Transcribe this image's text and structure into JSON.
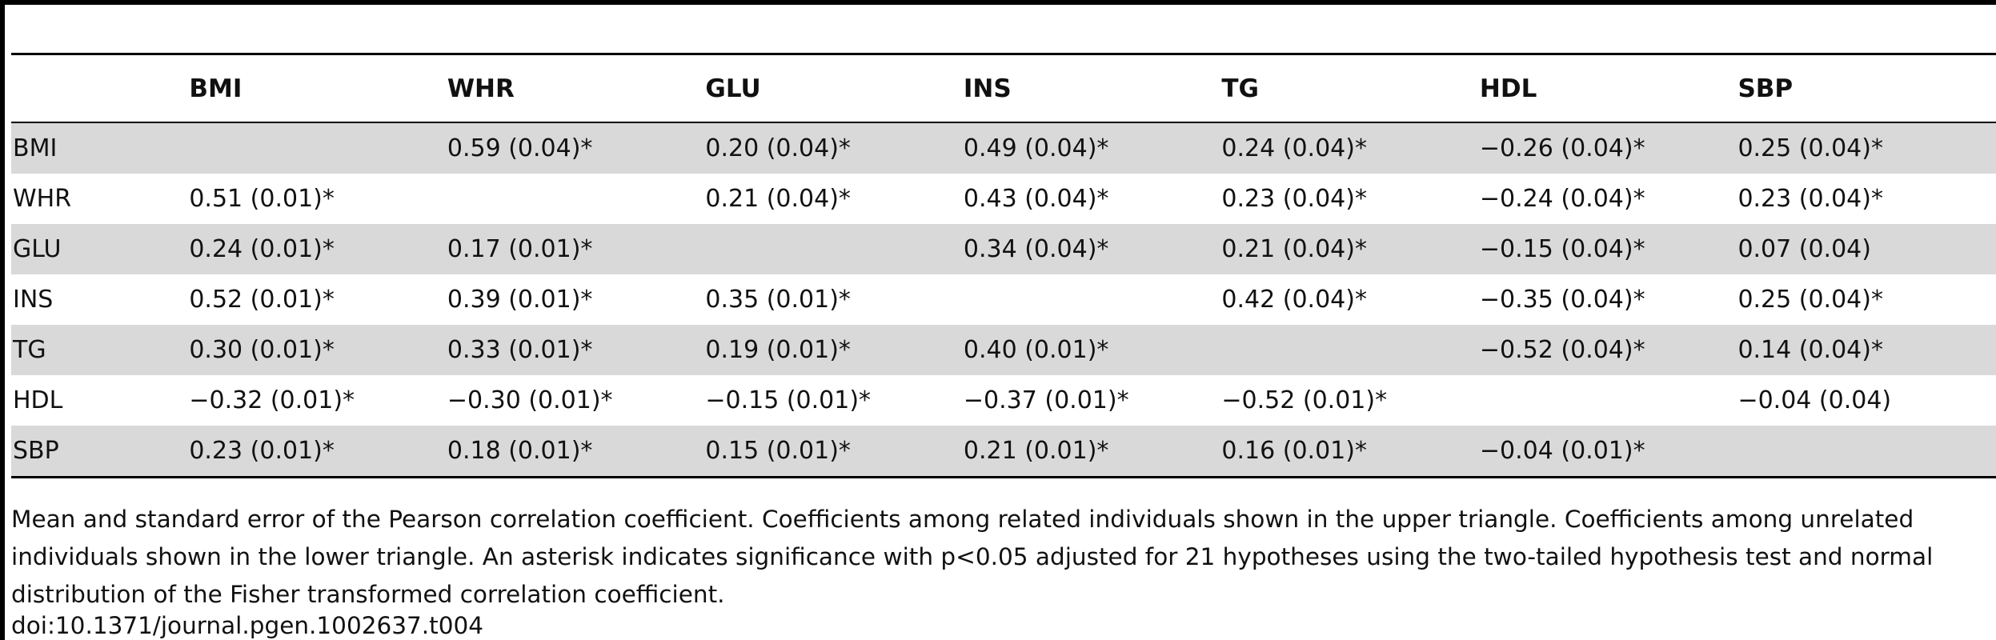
{
  "table": {
    "columns": [
      "",
      "BMI",
      "WHR",
      "GLU",
      "INS",
      "TG",
      "HDL",
      "SBP"
    ],
    "rows": [
      [
        "BMI",
        "",
        "0.59 (0.04)*",
        "0.20 (0.04)*",
        "0.49 (0.04)*",
        "0.24 (0.04)*",
        "−0.26 (0.04)*",
        "0.25 (0.04)*"
      ],
      [
        "WHR",
        "0.51 (0.01)*",
        "",
        "0.21 (0.04)*",
        "0.43 (0.04)*",
        "0.23 (0.04)*",
        "−0.24 (0.04)*",
        "0.23 (0.04)*"
      ],
      [
        "GLU",
        "0.24 (0.01)*",
        "0.17 (0.01)*",
        "",
        "0.34 (0.04)*",
        "0.21 (0.04)*",
        "−0.15 (0.04)*",
        "0.07 (0.04)"
      ],
      [
        "INS",
        "0.52 (0.01)*",
        "0.39 (0.01)*",
        "0.35 (0.01)*",
        "",
        "0.42 (0.04)*",
        "−0.35 (0.04)*",
        "0.25 (0.04)*"
      ],
      [
        "TG",
        "0.30 (0.01)*",
        "0.33 (0.01)*",
        "0.19 (0.01)*",
        "0.40 (0.01)*",
        "",
        "−0.52 (0.04)*",
        "0.14 (0.04)*"
      ],
      [
        "HDL",
        "−0.32 (0.01)*",
        "−0.30 (0.01)*",
        "−0.15 (0.01)*",
        "−0.37 (0.01)*",
        "−0.52 (0.01)*",
        "",
        "−0.04 (0.04)"
      ],
      [
        "SBP",
        "0.23 (0.01)*",
        "0.18 (0.01)*",
        "0.15 (0.01)*",
        "0.21 (0.01)*",
        "0.16 (0.01)*",
        "−0.04 (0.01)*",
        ""
      ]
    ]
  },
  "footnote": "Mean and standard error of the Pearson correlation coefficient. Coefficients among related individuals shown in the upper triangle. Coefficients among unrelated individuals shown in the lower triangle. An asterisk indicates significance with p<0.05 adjusted for 21 hypotheses using the two-tailed hypothesis test and normal distribution of the Fisher transformed correlation coefficient.",
  "doi": "doi:10.1371/journal.pgen.1002637.t004"
}
